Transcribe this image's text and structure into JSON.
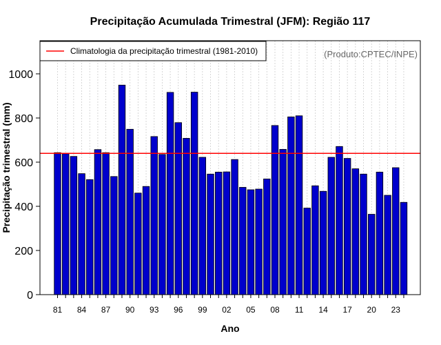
{
  "chart_data": {
    "type": "bar",
    "title": "Precipitação Acumulada Trimestral (JFM): Região 117",
    "xlabel": "Ano",
    "ylabel": "Precipitação trimestral (mm)",
    "ylim": [
      0,
      1150
    ],
    "yticks": [
      0,
      200,
      400,
      600,
      800,
      1000
    ],
    "categories": [
      "81",
      "82",
      "83",
      "84",
      "85",
      "86",
      "87",
      "88",
      "89",
      "90",
      "91",
      "92",
      "93",
      "94",
      "95",
      "96",
      "97",
      "98",
      "99",
      "00",
      "01",
      "02",
      "03",
      "04",
      "05",
      "06",
      "07",
      "08",
      "09",
      "10",
      "11",
      "12",
      "13",
      "14",
      "15",
      "16",
      "17",
      "18",
      "19",
      "20",
      "21",
      "22",
      "23",
      "24"
    ],
    "xtick_labels": [
      "81",
      "84",
      "87",
      "90",
      "93",
      "96",
      "99",
      "02",
      "05",
      "08",
      "11",
      "14",
      "17",
      "20",
      "23"
    ],
    "values": [
      643,
      638,
      626,
      548,
      521,
      657,
      643,
      535,
      949,
      749,
      460,
      490,
      716,
      635,
      916,
      779,
      708,
      917,
      622,
      546,
      555,
      556,
      612,
      486,
      475,
      478,
      524,
      766,
      658,
      805,
      810,
      392,
      493,
      468,
      622,
      671,
      617,
      570,
      546,
      364,
      555,
      450,
      575,
      418
    ],
    "climatology": 640,
    "legend": {
      "label": "Climatologia da precipitação trimestral (1981-2010)",
      "position": "top-left"
    },
    "credit": "(Produto:CPTEC/INPE)",
    "bar_color": "#0000CC",
    "line_color": "#FF0000",
    "grid": "vertical-dotted"
  }
}
